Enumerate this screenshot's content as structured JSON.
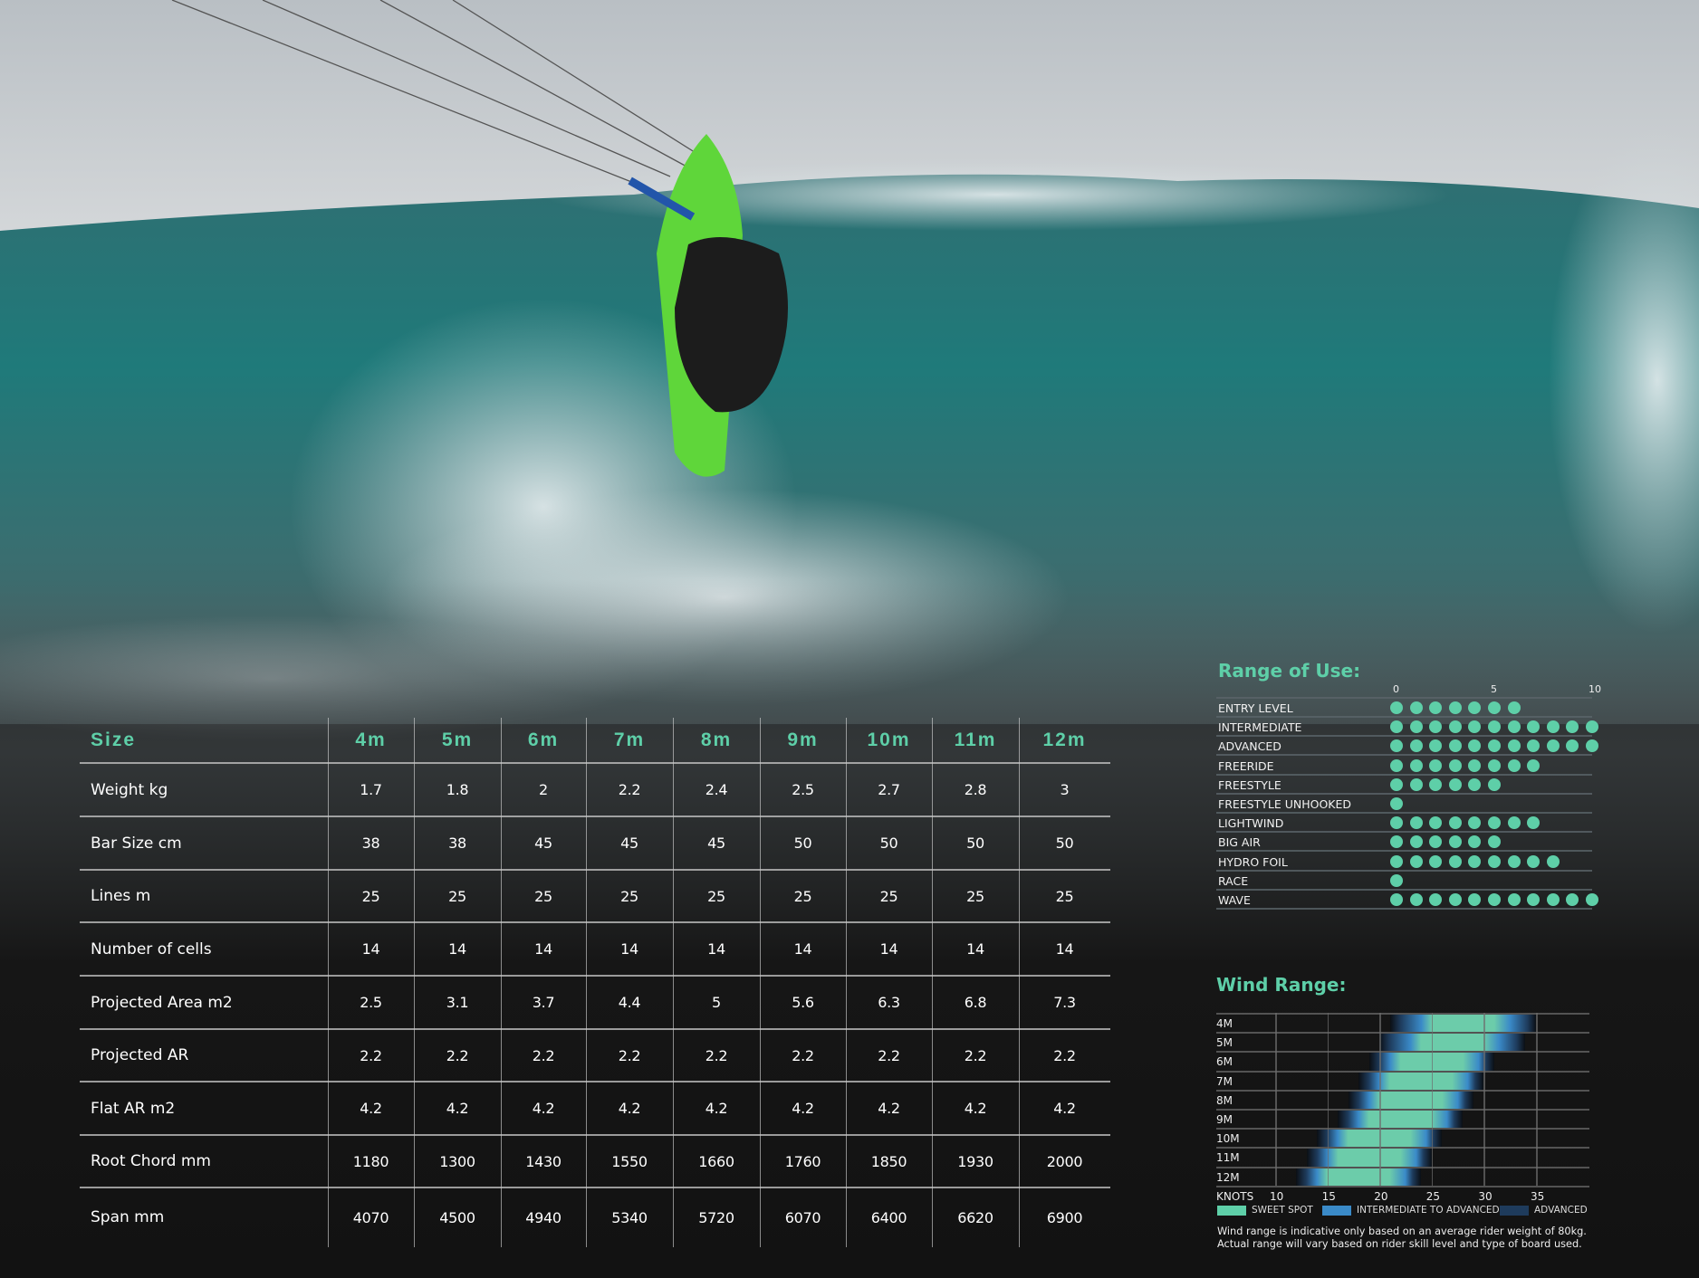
{
  "colors": {
    "accent": "#5ecfa8",
    "intermediate": "#3a8ac8",
    "advanced": "#1e3b5c",
    "background": "#121212"
  },
  "spec_table": {
    "header_label": "Size",
    "sizes": [
      "4m",
      "5m",
      "6m",
      "7m",
      "8m",
      "9m",
      "10m",
      "11m",
      "12m"
    ],
    "rows": [
      {
        "label": "Weight kg",
        "values": [
          "1.7",
          "1.8",
          "2",
          "2.2",
          "2.4",
          "2.5",
          "2.7",
          "2.8",
          "3"
        ]
      },
      {
        "label": "Bar Size cm",
        "values": [
          "38",
          "38",
          "45",
          "45",
          "45",
          "50",
          "50",
          "50",
          "50"
        ]
      },
      {
        "label": "Lines m",
        "values": [
          "25",
          "25",
          "25",
          "25",
          "25",
          "25",
          "25",
          "25",
          "25"
        ]
      },
      {
        "label": "Number of cells",
        "values": [
          "14",
          "14",
          "14",
          "14",
          "14",
          "14",
          "14",
          "14",
          "14"
        ]
      },
      {
        "label": "Projected Area m2",
        "values": [
          "2.5",
          "3.1",
          "3.7",
          "4.4",
          "5",
          "5.6",
          "6.3",
          "6.8",
          "7.3"
        ]
      },
      {
        "label": "Projected AR",
        "values": [
          "2.2",
          "2.2",
          "2.2",
          "2.2",
          "2.2",
          "2.2",
          "2.2",
          "2.2",
          "2.2"
        ]
      },
      {
        "label": "Flat AR m2",
        "values": [
          "4.2",
          "4.2",
          "4.2",
          "4.2",
          "4.2",
          "4.2",
          "4.2",
          "4.2",
          "4.2"
        ]
      },
      {
        "label": "Root Chord mm",
        "values": [
          "1180",
          "1300",
          "1430",
          "1550",
          "1660",
          "1760",
          "1850",
          "1930",
          "2000"
        ]
      },
      {
        "label": "Span mm",
        "values": [
          "4070",
          "4500",
          "4940",
          "5340",
          "5720",
          "6070",
          "6400",
          "6620",
          "6900"
        ]
      }
    ]
  },
  "range_of_use": {
    "title": "Range of Use:",
    "scale_ticks": [
      "0",
      "5",
      "10"
    ],
    "scale_max": 10,
    "items": [
      {
        "label": "ENTRY LEVEL",
        "value": 6
      },
      {
        "label": "INTERMEDIATE",
        "value": 10
      },
      {
        "label": "ADVANCED",
        "value": 10
      },
      {
        "label": "FREERIDE",
        "value": 7
      },
      {
        "label": "FREESTYLE",
        "value": 5
      },
      {
        "label": "FREESTYLE UNHOOKED",
        "value": 0
      },
      {
        "label": "LIGHTWIND",
        "value": 7
      },
      {
        "label": "BIG AIR",
        "value": 5
      },
      {
        "label": "HYDRO FOIL",
        "value": 8
      },
      {
        "label": "RACE",
        "value": 0
      },
      {
        "label": "WAVE",
        "value": 10
      }
    ]
  },
  "wind_range": {
    "title": "Wind Range:",
    "axis_label": "KNOTS",
    "ticks": [
      "10",
      "15",
      "20",
      "25",
      "30",
      "35"
    ],
    "xlim": [
      4.3,
      41
    ],
    "rows": [
      {
        "size": "4M",
        "min": 21,
        "sweet": [
          25,
          31
        ],
        "max": 35
      },
      {
        "size": "5M",
        "min": 20,
        "sweet": [
          24,
          30
        ],
        "max": 34
      },
      {
        "size": "6M",
        "min": 19,
        "sweet": [
          22,
          28
        ],
        "max": 31
      },
      {
        "size": "7M",
        "min": 18,
        "sweet": [
          21,
          27
        ],
        "max": 30
      },
      {
        "size": "8M",
        "min": 17,
        "sweet": [
          20,
          26
        ],
        "max": 29
      },
      {
        "size": "9M",
        "min": 16,
        "sweet": [
          19,
          25
        ],
        "max": 28
      },
      {
        "size": "10M",
        "min": 14,
        "sweet": [
          17,
          23
        ],
        "max": 26
      },
      {
        "size": "11M",
        "min": 13,
        "sweet": [
          16,
          22
        ],
        "max": 25
      },
      {
        "size": "12M",
        "min": 12,
        "sweet": [
          15,
          21
        ],
        "max": 24
      }
    ],
    "legend": [
      "SWEET SPOT",
      "INTERMEDIATE TO ADVANCED",
      "ADVANCED"
    ],
    "note": [
      "Wind range is indicative only based on an average rider weight of 80kg.",
      "Actual range will vary based on rider skill level and type of board used."
    ]
  }
}
